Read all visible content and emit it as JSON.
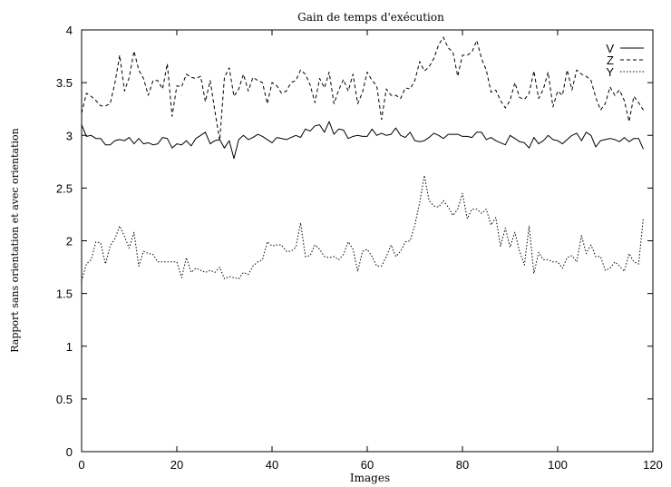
{
  "chart_data": {
    "type": "line",
    "title": "Gain de temps d'exécution",
    "xlabel": "Images",
    "ylabel": "Rapport sans orientation et avec orientation",
    "xlim": [
      0,
      120
    ],
    "ylim": [
      0,
      4
    ],
    "xticks": [
      "0",
      "20",
      "40",
      "60",
      "80",
      "100",
      "120"
    ],
    "yticks": [
      "0",
      "0.5",
      "1",
      "1.5",
      "2",
      "2.5",
      "3",
      "3.5",
      "4"
    ],
    "grid": false,
    "legend_position": "top-right",
    "x": [
      0,
      1,
      2,
      3,
      4,
      5,
      6,
      7,
      8,
      9,
      10,
      11,
      12,
      13,
      14,
      15,
      16,
      17,
      18,
      19,
      20,
      21,
      22,
      23,
      24,
      25,
      26,
      27,
      28,
      29,
      30,
      31,
      32,
      33,
      34,
      35,
      36,
      37,
      38,
      39,
      40,
      41,
      42,
      43,
      44,
      45,
      46,
      47,
      48,
      49,
      50,
      51,
      52,
      53,
      54,
      55,
      56,
      57,
      58,
      59,
      60,
      61,
      62,
      63,
      64,
      65,
      66,
      67,
      68,
      69,
      70,
      71,
      72,
      73,
      74,
      75,
      76,
      77,
      78,
      79,
      80,
      81,
      82,
      83,
      84,
      85,
      86,
      87,
      88,
      89,
      90,
      91,
      92,
      93,
      94,
      95,
      96,
      97,
      98,
      99,
      100,
      101,
      102,
      103,
      104,
      105,
      106,
      107,
      108,
      109,
      110,
      111,
      112,
      113,
      114,
      115,
      116,
      117,
      118
    ],
    "series": [
      {
        "name": "V",
        "style": "solid",
        "values": [
          3.1,
          2.99,
          3.0,
          2.97,
          2.97,
          2.91,
          2.91,
          2.95,
          2.96,
          2.95,
          2.98,
          2.92,
          2.97,
          2.92,
          2.93,
          2.91,
          2.92,
          2.98,
          2.97,
          2.88,
          2.92,
          2.91,
          2.95,
          2.9,
          2.97,
          3.0,
          3.03,
          2.92,
          2.95,
          2.96,
          2.88,
          2.95,
          2.78,
          2.96,
          3.0,
          2.96,
          2.98,
          3.01,
          2.99,
          2.96,
          2.93,
          2.98,
          2.97,
          2.96,
          2.98,
          3.0,
          2.98,
          3.06,
          3.04,
          3.09,
          3.1,
          3.03,
          3.13,
          3.01,
          3.06,
          3.05,
          2.97,
          2.99,
          3.0,
          2.99,
          2.99,
          3.06,
          3.0,
          3.02,
          3.0,
          3.01,
          3.07,
          3.0,
          2.98,
          3.03,
          2.95,
          2.94,
          2.95,
          2.98,
          3.02,
          3.0,
          2.97,
          3.01,
          3.01,
          3.01,
          2.99,
          2.99,
          2.98,
          3.03,
          3.03,
          2.96,
          2.98,
          2.95,
          2.93,
          2.91,
          3.0,
          2.97,
          2.94,
          2.93,
          2.88,
          2.98,
          2.92,
          2.95,
          3.0,
          2.96,
          2.95,
          2.92,
          2.96,
          3.0,
          3.02,
          2.95,
          3.03,
          3.0,
          2.89,
          2.95,
          2.96,
          2.97,
          2.96,
          2.94,
          2.98,
          2.94,
          2.97,
          2.97,
          2.87
        ]
      },
      {
        "name": "Z",
        "style": "dashed",
        "values": [
          3.21,
          3.4,
          3.37,
          3.33,
          3.28,
          3.28,
          3.3,
          3.5,
          3.76,
          3.42,
          3.55,
          3.8,
          3.62,
          3.54,
          3.38,
          3.52,
          3.52,
          3.44,
          3.68,
          3.18,
          3.47,
          3.46,
          3.58,
          3.55,
          3.54,
          3.56,
          3.32,
          3.52,
          3.23,
          2.95,
          3.55,
          3.64,
          3.37,
          3.44,
          3.58,
          3.42,
          3.55,
          3.52,
          3.5,
          3.3,
          3.5,
          3.47,
          3.4,
          3.42,
          3.5,
          3.52,
          3.62,
          3.58,
          3.48,
          3.31,
          3.54,
          3.45,
          3.6,
          3.3,
          3.43,
          3.53,
          3.42,
          3.58,
          3.3,
          3.41,
          3.6,
          3.52,
          3.47,
          3.15,
          3.44,
          3.38,
          3.38,
          3.35,
          3.45,
          3.44,
          3.52,
          3.7,
          3.61,
          3.65,
          3.73,
          3.86,
          3.93,
          3.83,
          3.79,
          3.56,
          3.76,
          3.76,
          3.79,
          3.9,
          3.73,
          3.62,
          3.41,
          3.43,
          3.33,
          3.26,
          3.33,
          3.5,
          3.36,
          3.34,
          3.4,
          3.61,
          3.35,
          3.44,
          3.6,
          3.27,
          3.42,
          3.38,
          3.62,
          3.43,
          3.62,
          3.58,
          3.56,
          3.52,
          3.36,
          3.24,
          3.3,
          3.46,
          3.38,
          3.43,
          3.33,
          3.13,
          3.37,
          3.31,
          3.24
        ]
      },
      {
        "name": "Y",
        "style": "dotted",
        "values": [
          1.62,
          1.78,
          1.82,
          1.99,
          1.98,
          1.78,
          1.95,
          2.02,
          2.14,
          2.04,
          1.93,
          2.08,
          1.76,
          1.9,
          1.88,
          1.87,
          1.8,
          1.8,
          1.8,
          1.8,
          1.8,
          1.65,
          1.84,
          1.7,
          1.74,
          1.72,
          1.7,
          1.72,
          1.7,
          1.75,
          1.64,
          1.66,
          1.65,
          1.64,
          1.7,
          1.68,
          1.76,
          1.8,
          1.82,
          1.99,
          1.95,
          1.96,
          1.96,
          1.9,
          1.9,
          1.94,
          2.17,
          1.85,
          1.86,
          1.96,
          1.92,
          1.85,
          1.84,
          1.85,
          1.82,
          1.87,
          1.99,
          1.92,
          1.71,
          1.9,
          1.92,
          1.85,
          1.76,
          1.76,
          1.85,
          1.96,
          1.85,
          1.9,
          1.99,
          2.0,
          2.15,
          2.36,
          2.62,
          2.38,
          2.33,
          2.32,
          2.38,
          2.32,
          2.24,
          2.3,
          2.45,
          2.21,
          2.3,
          2.3,
          2.26,
          2.3,
          2.15,
          2.22,
          1.95,
          2.12,
          1.94,
          2.08,
          1.9,
          1.77,
          2.14,
          1.69,
          1.89,
          1.82,
          1.82,
          1.8,
          1.8,
          1.74,
          1.84,
          1.86,
          1.8,
          2.05,
          1.88,
          1.96,
          1.85,
          1.85,
          1.72,
          1.74,
          1.8,
          1.76,
          1.71,
          1.88,
          1.8,
          1.78,
          2.22
        ]
      }
    ]
  }
}
